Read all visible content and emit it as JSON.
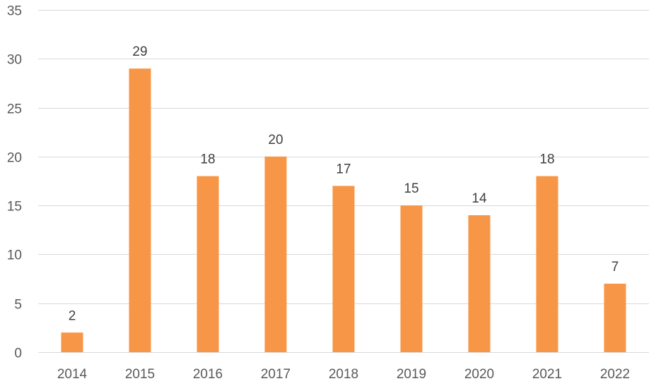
{
  "chart_data": {
    "type": "bar",
    "categories": [
      "2014",
      "2015",
      "2016",
      "2017",
      "2018",
      "2019",
      "2020",
      "2021",
      "2022"
    ],
    "values": [
      2,
      29,
      18,
      20,
      17,
      15,
      14,
      18,
      7
    ],
    "ylim": [
      0,
      35
    ],
    "yticks": [
      0,
      5,
      10,
      15,
      20,
      25,
      30,
      35
    ],
    "grid": true,
    "data_labels": true,
    "colors": {
      "bar": "#f79646",
      "gridline": "#d9d9d9"
    }
  }
}
